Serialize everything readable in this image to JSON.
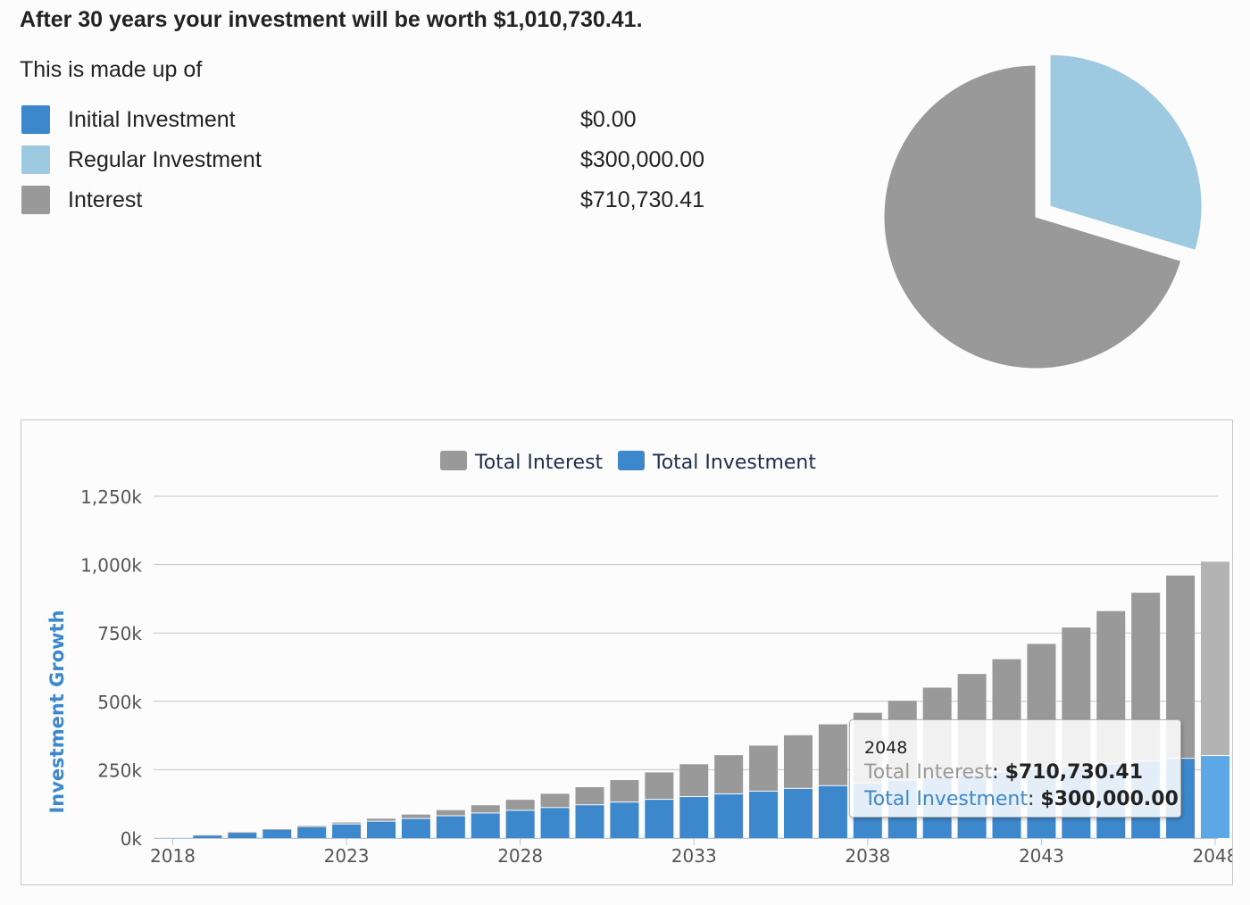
{
  "summary": {
    "headline": "After 30 years your investment will be worth $1,010,730.41.",
    "made_up_of": "This is made up of",
    "items": [
      {
        "label": "Initial Investment",
        "value": "$0.00",
        "color": "#3d88cc"
      },
      {
        "label": "Regular Investment",
        "value": "$300,000.00",
        "color": "#9ecae1"
      },
      {
        "label": "Interest",
        "value": "$710,730.41",
        "color": "#999999"
      }
    ]
  },
  "chart_data": [
    {
      "type": "pie",
      "labels": [
        "Initial Investment",
        "Regular Investment",
        "Interest"
      ],
      "values": [
        0,
        300000.0,
        710730.41
      ],
      "colors": [
        "#3d88cc",
        "#9ecae1",
        "#999999"
      ],
      "exploded": "Regular Investment"
    },
    {
      "type": "bar",
      "stacked": true,
      "legend": [
        "Total Interest",
        "Total Investment"
      ],
      "ylabel": "Investment Growth",
      "ylim": [
        0,
        1250000
      ],
      "yticks": [
        "0k",
        "250k",
        "500k",
        "750k",
        "1,000k",
        "1,250k"
      ],
      "xticks": [
        "2018",
        "2023",
        "2028",
        "2033",
        "2038",
        "2043",
        "2048"
      ],
      "categories": [
        2018,
        2019,
        2020,
        2021,
        2022,
        2023,
        2024,
        2025,
        2026,
        2027,
        2028,
        2029,
        2030,
        2031,
        2032,
        2033,
        2034,
        2035,
        2036,
        2037,
        2038,
        2039,
        2040,
        2041,
        2042,
        2043,
        2044,
        2045,
        2046,
        2047,
        2048
      ],
      "series": [
        {
          "name": "Total Investment",
          "color": "#3d88cc",
          "values": [
            0,
            10000,
            20000,
            30000,
            40000,
            50000,
            60000,
            70000,
            80000,
            90000,
            100000,
            110000,
            120000,
            130000,
            140000,
            150000,
            160000,
            170000,
            180000,
            190000,
            200000,
            210000,
            220000,
            230000,
            240000,
            250000,
            260000,
            270000,
            280000,
            290000,
            300000
          ]
        },
        {
          "name": "Total Interest",
          "color": "#999999",
          "values": [
            0,
            100,
            800,
            2000,
            4000,
            7000,
            11000,
            16000,
            22000,
            30000,
            40000,
            52000,
            66000,
            82000,
            100000,
            120000,
            143000,
            168000,
            196000,
            226000,
            258000,
            292000,
            330000,
            370000,
            414000,
            460000,
            510000,
            560000,
            617000,
            670000,
            710730.41
          ]
        }
      ],
      "highlight": {
        "category": "2048",
        "rows": [
          {
            "label": "Total Interest",
            "value": "$710,730.41",
            "color": "#999999"
          },
          {
            "label": "Total Investment",
            "value": "$300,000.00",
            "color": "#3d88cc"
          }
        ]
      }
    }
  ]
}
